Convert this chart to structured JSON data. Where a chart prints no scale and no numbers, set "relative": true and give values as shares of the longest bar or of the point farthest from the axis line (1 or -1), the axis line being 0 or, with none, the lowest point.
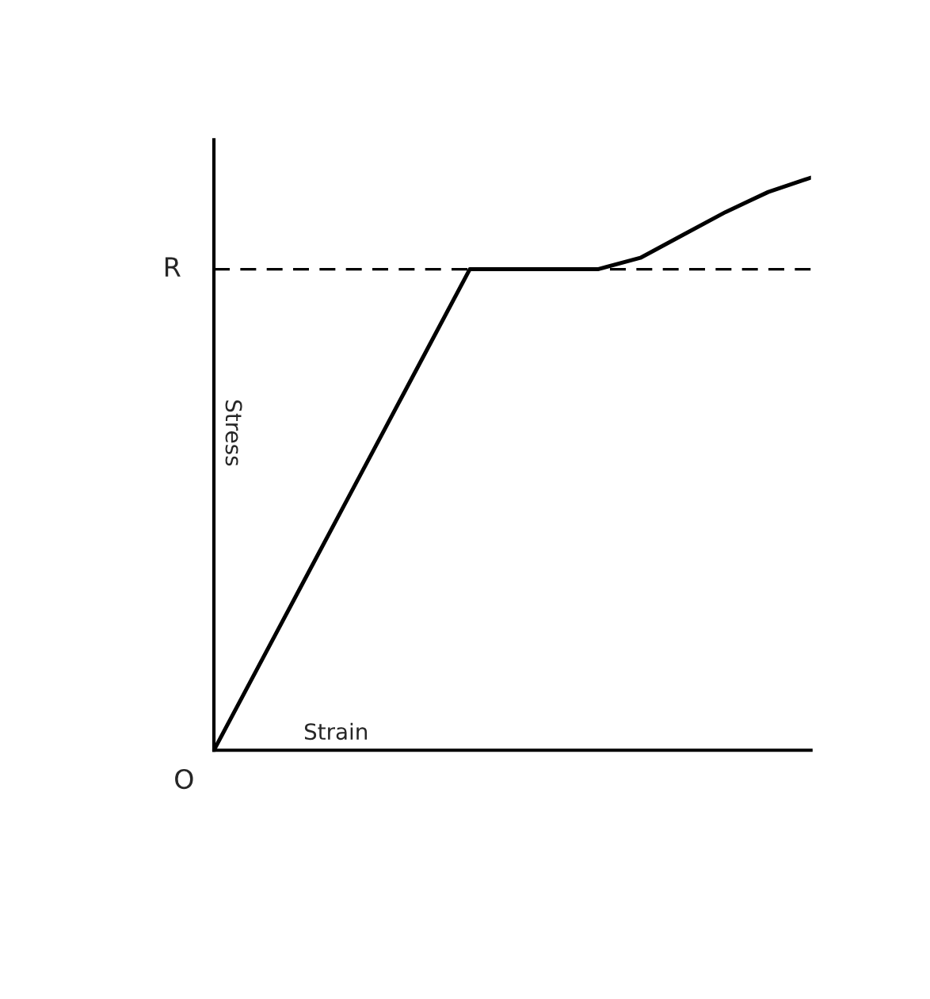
{
  "chart_data": {
    "type": "line",
    "relative": true,
    "xlabel": "Strain",
    "ylabel": "Stress",
    "categories": [
      null,
      null,
      null,
      null,
      null,
      null,
      null,
      null,
      null,
      null,
      null,
      null,
      null,
      null,
      null
    ],
    "values": [
      0,
      0.14,
      0.28,
      0.42,
      0.56,
      0.7,
      0.84,
      0.84,
      0.84,
      0.84,
      0.86,
      0.9,
      0.94,
      0.975,
      1.0
    ],
    "color": "#000000",
    "ref_lines": [
      {
        "axis": "y",
        "value": 0.84,
        "label": "R",
        "line_style": "dashed",
        "color": "#000000"
      }
    ],
    "annotations": [
      "O"
    ]
  }
}
